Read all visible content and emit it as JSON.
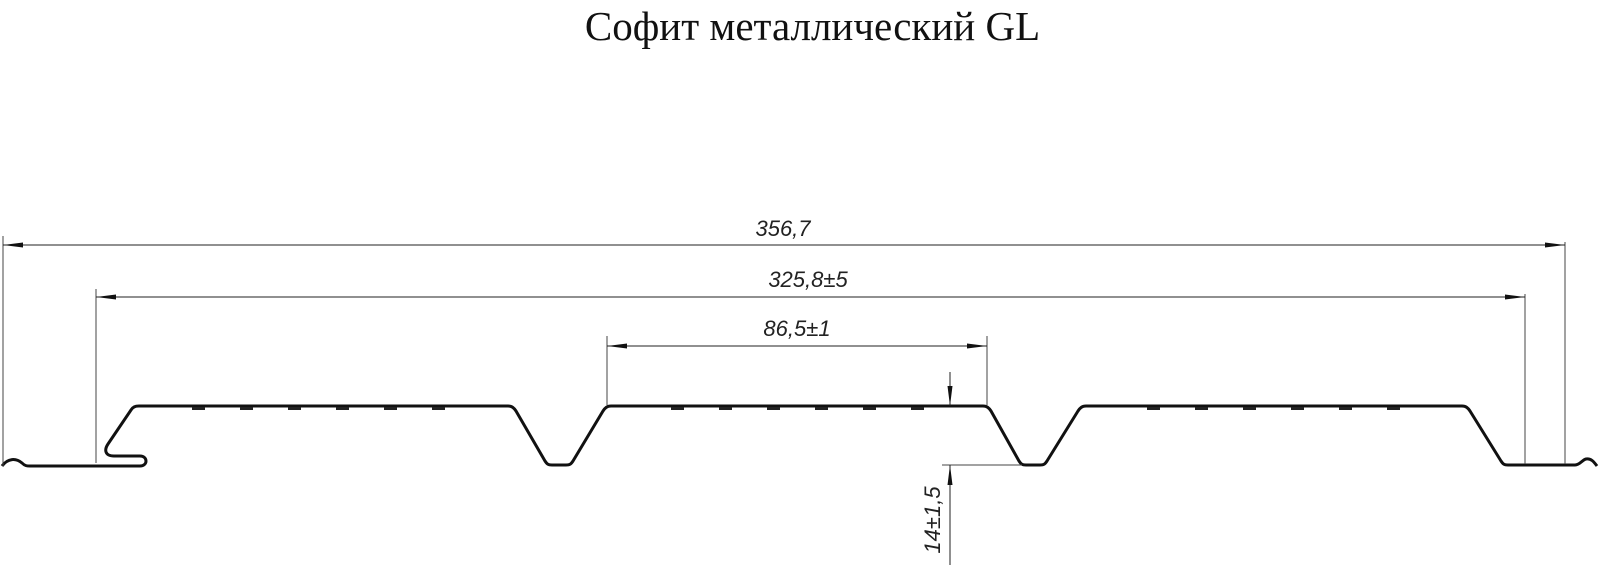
{
  "title": "Софит металлический GL",
  "dimensions": {
    "total_width": "356,7",
    "working_width": "325,8±5",
    "rib_pitch": "86,5±1",
    "profile_height": "14±1,5"
  },
  "colors": {
    "line": "#111111",
    "dim_line": "#333333"
  }
}
